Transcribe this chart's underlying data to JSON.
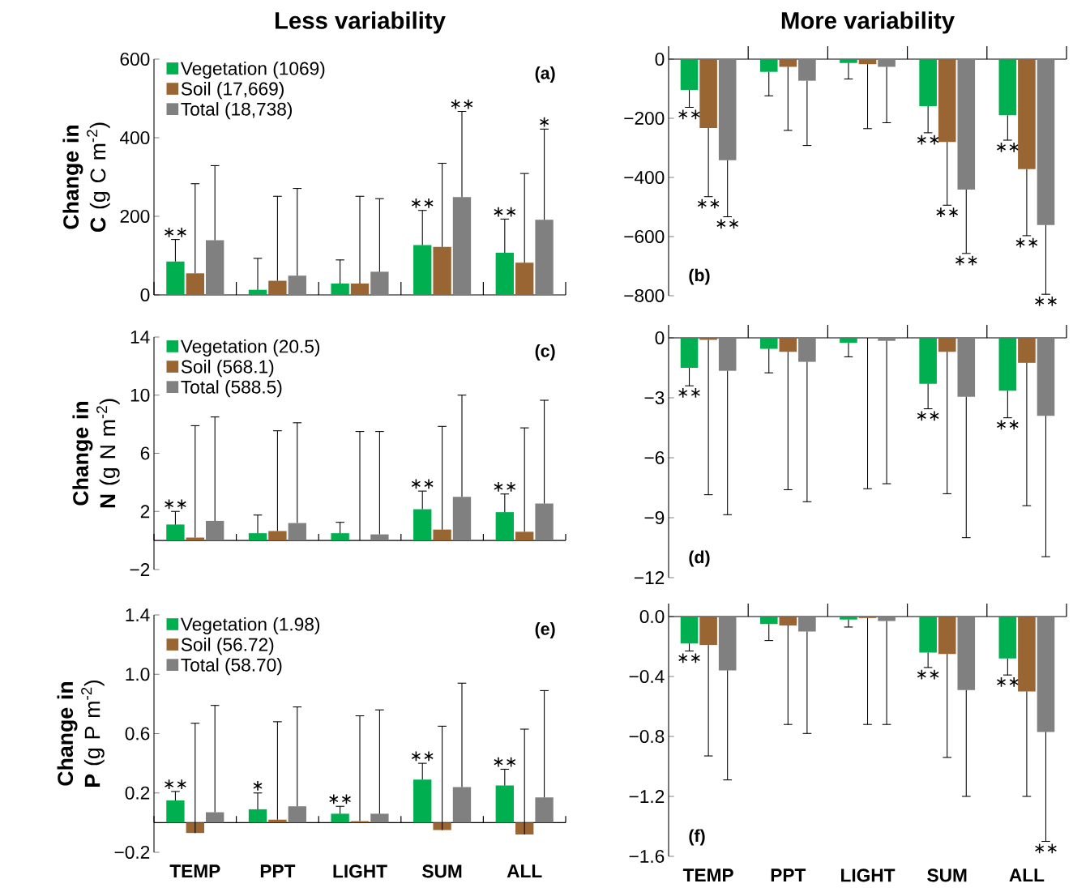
{
  "chart_data": [
    {
      "type": "bar",
      "title": "Less variability",
      "ylabel": "**Change in C** (g C m$^{-2}$)",
      "categories": [
        "TEMP",
        "PPT",
        "LIGHT",
        "SUM",
        "ALL"
      ],
      "tick_labels": "y",
      "ylim": [
        0,
        600
      ],
      "yticks": [
        0,
        200,
        400,
        600
      ],
      "legend": "top left",
      "series": [
        {
          "name": "Vegetation (1069)",
          "color": "#00b050",
          "values": [
            85,
            13,
            29,
            127,
            107
          ],
          "errors": [
            [
              85,
              141
            ],
            [
              13,
              93
            ],
            [
              29,
              89
            ],
            [
              127,
              215
            ],
            [
              107,
              193
            ]
          ]
        },
        {
          "name": "Soil (17,669)",
          "color": "#996633",
          "values": [
            55,
            36,
            29,
            122,
            82
          ],
          "errors": [
            [
              55,
              283
            ],
            [
              36,
              251
            ],
            [
              29,
              251
            ],
            [
              122,
              335
            ],
            [
              82,
              309
            ]
          ]
        },
        {
          "name": "Total (18,738)",
          "color": "#808080",
          "values": [
            139,
            49,
            59,
            249,
            191
          ],
          "errors": [
            [
              139,
              329
            ],
            [
              49,
              271
            ],
            [
              59,
              245
            ],
            [
              249,
              467
            ],
            [
              191,
              422
            ]
          ]
        }
      ],
      "annotations": [
        "(a)",
        {
          "text": "∗∗",
          "x": "TEMP",
          "y": 141
        },
        {
          "text": "∗∗",
          "x": "SUM",
          "y": 215
        },
        {
          "text": "∗∗",
          "y": 467
        },
        {
          "text": "∗∗",
          "x": "ALL",
          "y": 193
        },
        {
          "text": "∗",
          "y": 422
        }
      ]
    },
    {
      "type": "bar",
      "title": "More variability",
      "categories": [
        "TEMP",
        "PPT",
        "LIGHT",
        "SUM",
        "ALL"
      ],
      "tick_labels": "y",
      "ylim": [
        -800,
        0
      ],
      "yticks": [
        {
          "value": -800,
          "label": "−800"
        },
        {
          "value": -600,
          "label": "−600"
        },
        {
          "value": -400,
          "label": "−400"
        },
        {
          "value": -200,
          "label": "−200"
        },
        0
      ],
      "series": [
        {
          "color": "#00b050",
          "values": [
            -104,
            -43,
            -13,
            -159,
            -190
          ],
          "errors": [
            [
              -163,
              -104
            ],
            [
              -124,
              -43
            ],
            [
              -67,
              -13
            ],
            [
              -249,
              -159
            ],
            [
              -274,
              -190
            ]
          ]
        },
        {
          "color": "#996633",
          "values": [
            -233,
            -26,
            -17,
            -280,
            -372
          ],
          "errors": [
            [
              -465,
              -233
            ],
            [
              -241,
              -26
            ],
            [
              -235,
              -17
            ],
            [
              -494,
              -280
            ],
            [
              -597,
              -372
            ]
          ]
        },
        {
          "color": "#808080",
          "values": [
            -342,
            -73,
            -26,
            -441,
            -561
          ],
          "errors": [
            [
              -533,
              -342
            ],
            [
              -292,
              -73
            ],
            [
              -215,
              -26
            ],
            [
              -657,
              -441
            ],
            [
              -795,
              -561
            ]
          ]
        }
      ],
      "annotations": [
        "(b)",
        {
          "text": "∗∗",
          "y": -163
        },
        {
          "text": "∗∗",
          "x": "TEMP",
          "y": -465
        },
        {
          "text": "∗∗",
          "y": -533
        },
        {
          "text": "∗∗",
          "y": -249
        },
        {
          "text": "∗∗",
          "x": "SUM",
          "y": -494
        },
        {
          "text": "∗∗",
          "y": -657
        },
        {
          "text": "∗∗",
          "y": -274
        },
        {
          "text": "∗∗",
          "x": "ALL",
          "y": -597
        },
        {
          "text": "∗∗",
          "y": -795
        }
      ]
    },
    {
      "type": "bar",
      "ylabel": "**Change in N** (g N m$^{-2}$)",
      "categories": [
        "TEMP",
        "PPT",
        "LIGHT",
        "SUM",
        "ALL"
      ],
      "tick_labels": "y",
      "ylim": [
        -2,
        14
      ],
      "yticks": [
        {
          "value": -2,
          "label": "−2"
        },
        2,
        6,
        10,
        14
      ],
      "legend": "top left",
      "series": [
        {
          "name": "Vegetation (20.5)",
          "color": "#00b050",
          "values": [
            1.1,
            0.5,
            0.5,
            2.15,
            1.95
          ],
          "errors": [
            [
              1.1,
              2.0
            ],
            [
              0.5,
              1.75
            ],
            [
              0.5,
              1.25
            ],
            [
              2.15,
              3.4
            ],
            [
              1.95,
              3.2
            ]
          ]
        },
        {
          "name": "Soil (568.1)",
          "color": "#996633",
          "values": [
            0.2,
            0.65,
            0,
            0.75,
            0.6
          ],
          "errors": [
            [
              0.2,
              7.9
            ],
            [
              0.65,
              7.55
            ],
            [
              0,
              7.5
            ],
            [
              0.75,
              7.85
            ],
            [
              0.6,
              7.75
            ]
          ]
        },
        {
          "name": "Total (588.5)",
          "color": "#808080",
          "values": [
            1.35,
            1.2,
            0.42,
            3.0,
            2.55
          ],
          "errors": [
            [
              1.35,
              8.5
            ],
            [
              1.2,
              8.1
            ],
            [
              0.42,
              7.5
            ],
            [
              3.0,
              10.0
            ],
            [
              2.55,
              9.65
            ]
          ]
        }
      ],
      "annotations": [
        "(c)",
        {
          "text": "∗∗",
          "x": "TEMP",
          "y": 2.0
        },
        {
          "text": "∗∗",
          "x": "SUM",
          "y": 3.4
        },
        {
          "text": "∗∗",
          "x": "ALL",
          "y": 3.2
        }
      ]
    },
    {
      "type": "bar",
      "categories": [
        "TEMP",
        "PPT",
        "LIGHT",
        "SUM",
        "ALL"
      ],
      "tick_labels": "y",
      "ylim": [
        -12,
        0
      ],
      "yticks": [
        {
          "value": -12,
          "label": "−12"
        },
        {
          "value": -9,
          "label": "−9"
        },
        {
          "value": -6,
          "label": "−6"
        },
        {
          "value": -3,
          "label": "−3"
        },
        0
      ],
      "series": [
        {
          "color": "#00b050",
          "values": [
            -1.5,
            -0.55,
            -0.25,
            -2.3,
            -2.65
          ],
          "errors": [
            [
              -2.4,
              -1.5
            ],
            [
              -1.75,
              -0.55
            ],
            [
              -0.95,
              -0.25
            ],
            [
              -3.55,
              -2.3
            ],
            [
              -4.0,
              -2.65
            ]
          ]
        },
        {
          "color": "#996633",
          "values": [
            -0.1,
            -0.7,
            0,
            -0.7,
            -1.25
          ],
          "errors": [
            [
              -7.85,
              -0.1
            ],
            [
              -7.6,
              -0.7
            ],
            [
              -7.55,
              0
            ],
            [
              -7.8,
              -0.7
            ],
            [
              -8.4,
              -1.25
            ]
          ]
        },
        {
          "color": "#808080",
          "values": [
            -1.65,
            -1.2,
            -0.15,
            -2.95,
            -3.9
          ],
          "errors": [
            [
              -8.85,
              -1.65
            ],
            [
              -8.2,
              -1.2
            ],
            [
              -7.3,
              -0.15
            ],
            [
              -10.0,
              -2.95
            ],
            [
              -10.95,
              -3.9
            ]
          ]
        }
      ],
      "annotations": [
        "(d)",
        {
          "text": "∗∗",
          "x": "TEMP",
          "y": -2.4
        },
        {
          "text": "∗∗",
          "x": "SUM",
          "y": -3.55
        },
        {
          "text": "∗∗",
          "x": "ALL",
          "y": -4.0
        }
      ]
    },
    {
      "type": "bar",
      "ylabel": "**Change in P** (g P m$^{-2}$)",
      "categories": [
        "TEMP",
        "PPT",
        "LIGHT",
        "SUM",
        "ALL"
      ],
      "ylim": [
        -0.2,
        1.4
      ],
      "yticks": [
        {
          "value": -0.2,
          "label": "−0.2"
        },
        0.2,
        0.6,
        {
          "value": 1.0,
          "label": "1.0"
        },
        1.4
      ],
      "legend": "top left",
      "series": [
        {
          "name": "Vegetation (1.98)",
          "color": "#00b050",
          "values": [
            0.15,
            0.09,
            0.06,
            0.29,
            0.25
          ],
          "errors": [
            [
              0.15,
              0.21
            ],
            [
              0.09,
              0.2
            ],
            [
              0.06,
              0.11
            ],
            [
              0.29,
              0.4
            ],
            [
              0.25,
              0.36
            ]
          ]
        },
        {
          "name": "Soil (56.72)",
          "color": "#996633",
          "values": [
            -0.07,
            0.02,
            0.01,
            -0.05,
            -0.08
          ],
          "errors": [
            [
              -0.07,
              0.67
            ],
            [
              0.02,
              0.68
            ],
            [
              0.01,
              0.72
            ],
            [
              -0.05,
              0.65
            ],
            [
              -0.08,
              0.63
            ]
          ]
        },
        {
          "name": "Total (58.70)",
          "color": "#808080",
          "values": [
            0.07,
            0.11,
            0.06,
            0.24,
            0.17
          ],
          "errors": [
            [
              0.07,
              0.79
            ],
            [
              0.11,
              0.78
            ],
            [
              0.06,
              0.76
            ],
            [
              0.24,
              0.94
            ],
            [
              0.17,
              0.89
            ]
          ]
        }
      ],
      "annotations": [
        "(e)",
        {
          "text": "∗∗",
          "x": "TEMP",
          "y": 0.21
        },
        {
          "text": "∗",
          "x": "PPT",
          "y": 0.2
        },
        {
          "text": "∗∗",
          "x": "LIGHT",
          "y": 0.11
        },
        {
          "text": "∗∗",
          "x": "SUM",
          "y": 0.4
        },
        {
          "text": "∗∗",
          "x": "ALL",
          "y": 0.36
        }
      ]
    },
    {
      "type": "bar",
      "categories": [
        "TEMP",
        "PPT",
        "LIGHT",
        "SUM",
        "ALL"
      ],
      "ylim": [
        -1.6,
        0
      ],
      "yticks": [
        {
          "value": -1.6,
          "label": "−1.6"
        },
        {
          "value": -1.2,
          "label": "−1.2"
        },
        {
          "value": -0.8,
          "label": "−0.8"
        },
        {
          "value": -0.4,
          "label": "−0.4"
        },
        {
          "value": 0,
          "label": "0.0"
        }
      ],
      "series": [
        {
          "color": "#00b050",
          "values": [
            -0.18,
            -0.05,
            -0.02,
            -0.24,
            -0.28
          ],
          "errors": [
            [
              -0.23,
              -0.18
            ],
            [
              -0.16,
              -0.05
            ],
            [
              -0.07,
              -0.02
            ],
            [
              -0.34,
              -0.24
            ],
            [
              -0.39,
              -0.28
            ]
          ]
        },
        {
          "color": "#996633",
          "values": [
            -0.19,
            -0.06,
            -0.01,
            -0.25,
            -0.5
          ],
          "errors": [
            [
              -0.93,
              -0.19
            ],
            [
              -0.72,
              -0.06
            ],
            [
              -0.72,
              -0.01
            ],
            [
              -0.94,
              -0.25
            ],
            [
              -1.2,
              -0.5
            ]
          ]
        },
        {
          "color": "#808080",
          "values": [
            -0.36,
            -0.1,
            -0.03,
            -0.49,
            -0.77
          ],
          "errors": [
            [
              -1.09,
              -0.36
            ],
            [
              -0.78,
              -0.1
            ],
            [
              -0.72,
              -0.03
            ],
            [
              -1.2,
              -0.49
            ],
            [
              -1.5,
              -0.77
            ]
          ]
        }
      ],
      "annotations": [
        "(f)",
        {
          "text": "∗∗",
          "x": "TEMP",
          "y": -0.23
        },
        {
          "text": "∗∗",
          "x": "SUM",
          "y": -0.34
        },
        {
          "text": "∗∗",
          "y": -0.39
        },
        {
          "text": "∗∗",
          "y": -1.5
        }
      ]
    }
  ]
}
